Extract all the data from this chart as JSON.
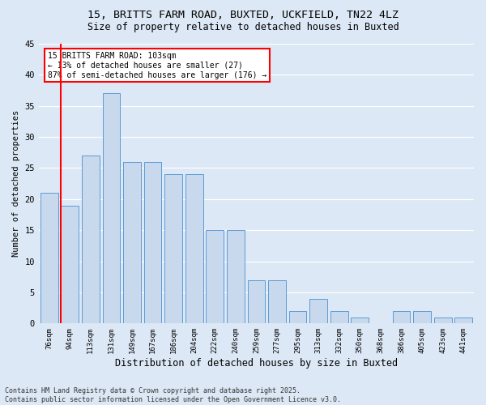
{
  "title_line1": "15, BRITTS FARM ROAD, BUXTED, UCKFIELD, TN22 4LZ",
  "title_line2": "Size of property relative to detached houses in Buxted",
  "xlabel": "Distribution of detached houses by size in Buxted",
  "ylabel": "Number of detached properties",
  "categories": [
    "76sqm",
    "94sqm",
    "113sqm",
    "131sqm",
    "149sqm",
    "167sqm",
    "186sqm",
    "204sqm",
    "222sqm",
    "240sqm",
    "259sqm",
    "277sqm",
    "295sqm",
    "313sqm",
    "332sqm",
    "350sqm",
    "368sqm",
    "386sqm",
    "405sqm",
    "423sqm",
    "441sqm"
  ],
  "values": [
    21,
    19,
    27,
    37,
    26,
    26,
    24,
    24,
    15,
    15,
    7,
    7,
    2,
    4,
    2,
    1,
    0,
    2,
    2,
    1,
    1
  ],
  "bar_color": "#c9d9ed",
  "bar_edge_color": "#5b9bd5",
  "marker_color": "red",
  "annotation_text": "15 BRITTS FARM ROAD: 103sqm\n← 13% of detached houses are smaller (27)\n87% of semi-detached houses are larger (176) →",
  "annotation_box_color": "white",
  "annotation_box_edge": "red",
  "ylim": [
    0,
    45
  ],
  "yticks": [
    0,
    5,
    10,
    15,
    20,
    25,
    30,
    35,
    40,
    45
  ],
  "bg_color": "#dce8f5",
  "grid_color": "white",
  "footer": "Contains HM Land Registry data © Crown copyright and database right 2025.\nContains public sector information licensed under the Open Government Licence v3.0."
}
